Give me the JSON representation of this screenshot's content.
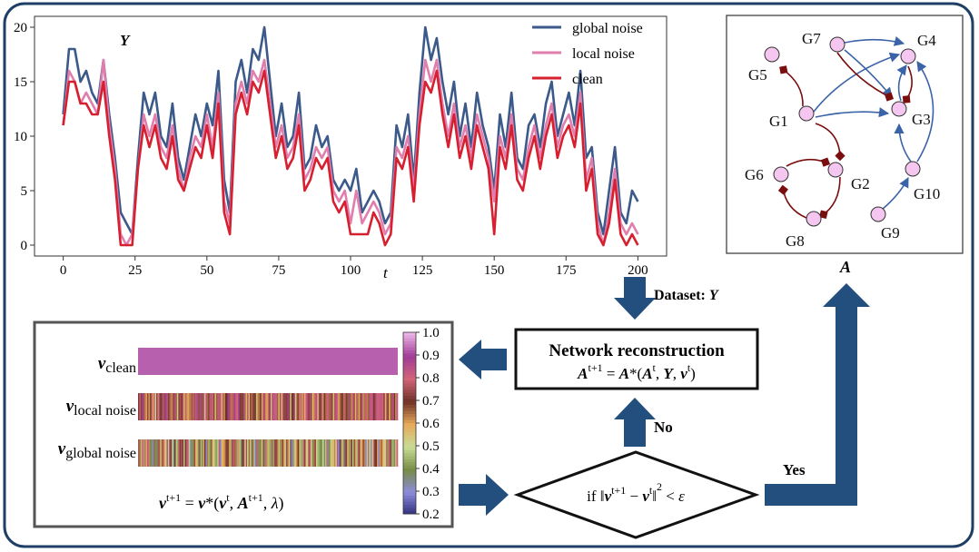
{
  "chart_data": {
    "type": "line",
    "title": "Y",
    "xlabel": "t",
    "ylabel": "",
    "xlim": [
      -10,
      210
    ],
    "ylim": [
      -1,
      21
    ],
    "xticks": [
      "0",
      "25",
      "50",
      "75",
      "100",
      "125",
      "150",
      "175",
      "200"
    ],
    "yticks": [
      "0",
      "5",
      "10",
      "15",
      "20"
    ],
    "legend_position": "top-right",
    "grid": false,
    "x": [
      0,
      2,
      4,
      6,
      8,
      10,
      12,
      14,
      16,
      18,
      20,
      22,
      24,
      26,
      28,
      30,
      32,
      34,
      36,
      38,
      40,
      42,
      44,
      46,
      48,
      50,
      52,
      54,
      56,
      58,
      60,
      62,
      64,
      66,
      68,
      70,
      72,
      74,
      76,
      78,
      80,
      82,
      84,
      86,
      88,
      90,
      92,
      94,
      96,
      98,
      100,
      102,
      104,
      106,
      108,
      110,
      112,
      114,
      116,
      118,
      120,
      122,
      124,
      126,
      128,
      130,
      132,
      134,
      136,
      138,
      140,
      142,
      144,
      146,
      148,
      150,
      152,
      154,
      156,
      158,
      160,
      162,
      164,
      166,
      168,
      170,
      172,
      174,
      176,
      178,
      180,
      182,
      184,
      186,
      188,
      190,
      192,
      194,
      196,
      198,
      200
    ],
    "series": [
      {
        "name": "global noise",
        "color": "#3b5a8a",
        "values": [
          12,
          18,
          18,
          15,
          16,
          14,
          13,
          17,
          12,
          8,
          3,
          2,
          1,
          8,
          14,
          12,
          14,
          10,
          9,
          13,
          8,
          6,
          9,
          12,
          10,
          13,
          11,
          16,
          6,
          3,
          15,
          17,
          14,
          18,
          17,
          20,
          15,
          10,
          13,
          9,
          10,
          14,
          7,
          8,
          11,
          9,
          10,
          6,
          5,
          6,
          5,
          7,
          3,
          4,
          5,
          4,
          2,
          3,
          11,
          9,
          12,
          6,
          14,
          20,
          17,
          19,
          15,
          12,
          15,
          10,
          13,
          9,
          14,
          11,
          9,
          5,
          12,
          9,
          14,
          8,
          7,
          11,
          12,
          9,
          13,
          15,
          10,
          12,
          14,
          11,
          16,
          8,
          9,
          3,
          1,
          5,
          9,
          3,
          2,
          5,
          4
        ]
      },
      {
        "name": "local noise",
        "color": "#e07fae",
        "values": [
          11,
          16,
          15,
          13,
          14,
          13,
          12,
          17,
          11,
          7,
          1,
          0,
          1,
          7,
          12,
          10,
          12,
          9,
          8,
          11,
          7,
          5,
          8,
          10,
          9,
          12,
          9,
          14,
          4,
          2,
          13,
          15,
          13,
          16,
          15,
          17,
          13,
          9,
          11,
          8,
          9,
          12,
          6,
          7,
          9,
          8,
          9,
          5,
          4,
          5,
          2,
          5,
          2,
          3,
          4,
          3,
          1,
          2,
          9,
          8,
          10,
          5,
          12,
          17,
          15,
          17,
          13,
          10,
          13,
          9,
          11,
          8,
          12,
          10,
          8,
          4,
          10,
          8,
          12,
          7,
          6,
          9,
          11,
          8,
          11,
          13,
          9,
          11,
          12,
          10,
          14,
          6,
          8,
          2,
          0,
          3,
          7,
          2,
          1,
          2,
          1
        ]
      },
      {
        "name": "clean",
        "color": "#d62030",
        "values": [
          11,
          15,
          15,
          13,
          13,
          12,
          12,
          15,
          10,
          6,
          0,
          0,
          0,
          7,
          11,
          9,
          11,
          8,
          7,
          10,
          6,
          5,
          7,
          9,
          8,
          11,
          8,
          13,
          3,
          1,
          12,
          14,
          12,
          15,
          14,
          16,
          12,
          8,
          10,
          7,
          8,
          11,
          5,
          6,
          8,
          7,
          8,
          4,
          3,
          4,
          1,
          1,
          1,
          1,
          3,
          2,
          0,
          1,
          8,
          7,
          9,
          4,
          11,
          15,
          14,
          16,
          12,
          9,
          12,
          8,
          10,
          7,
          11,
          9,
          7,
          1,
          9,
          7,
          11,
          6,
          5,
          8,
          10,
          7,
          10,
          12,
          8,
          10,
          11,
          9,
          13,
          5,
          7,
          1,
          0,
          2,
          6,
          1,
          0,
          1,
          0
        ]
      }
    ]
  },
  "network": {
    "title": "A",
    "nodes": [
      {
        "id": "G1",
        "label": "G1"
      },
      {
        "id": "G2",
        "label": "G2"
      },
      {
        "id": "G3",
        "label": "G3"
      },
      {
        "id": "G4",
        "label": "G4"
      },
      {
        "id": "G5",
        "label": "G5"
      },
      {
        "id": "G6",
        "label": "G6"
      },
      {
        "id": "G7",
        "label": "G7"
      },
      {
        "id": "G8",
        "label": "G8"
      },
      {
        "id": "G9",
        "label": "G9"
      },
      {
        "id": "G10",
        "label": "G10"
      }
    ],
    "node_color": "#f5c6ef",
    "activation_color": "#3b64a8",
    "repression_color": "#7a0d0d"
  },
  "heatmap": {
    "row_labels": [
      {
        "base": "v",
        "sub": "clean"
      },
      {
        "base": "v",
        "sub": "local noise"
      },
      {
        "base": "v",
        "sub": "global noise"
      }
    ],
    "colorbar_ticks": [
      "1.0",
      "0.9",
      "0.8",
      "0.7",
      "0.6",
      "0.5",
      "0.4",
      "0.3",
      "0.2"
    ],
    "colorbar_range": [
      0.2,
      1.0
    ],
    "clean_value": 0.93,
    "formula": "v^{t+1} = v*(v^t, A^{t+1}, λ)"
  },
  "flow": {
    "dataset_label": "Dataset: Y",
    "recon_title": "Network reconstruction",
    "recon_formula": "A^{t+1} = A*(A^t, Y, v^t)",
    "no_label": "No",
    "yes_label": "Yes",
    "condition": "if ||v^{t+1} − v^t||^2 < ε"
  },
  "colors": {
    "frame": "#1f3f66",
    "arrow": "#234f7e"
  }
}
